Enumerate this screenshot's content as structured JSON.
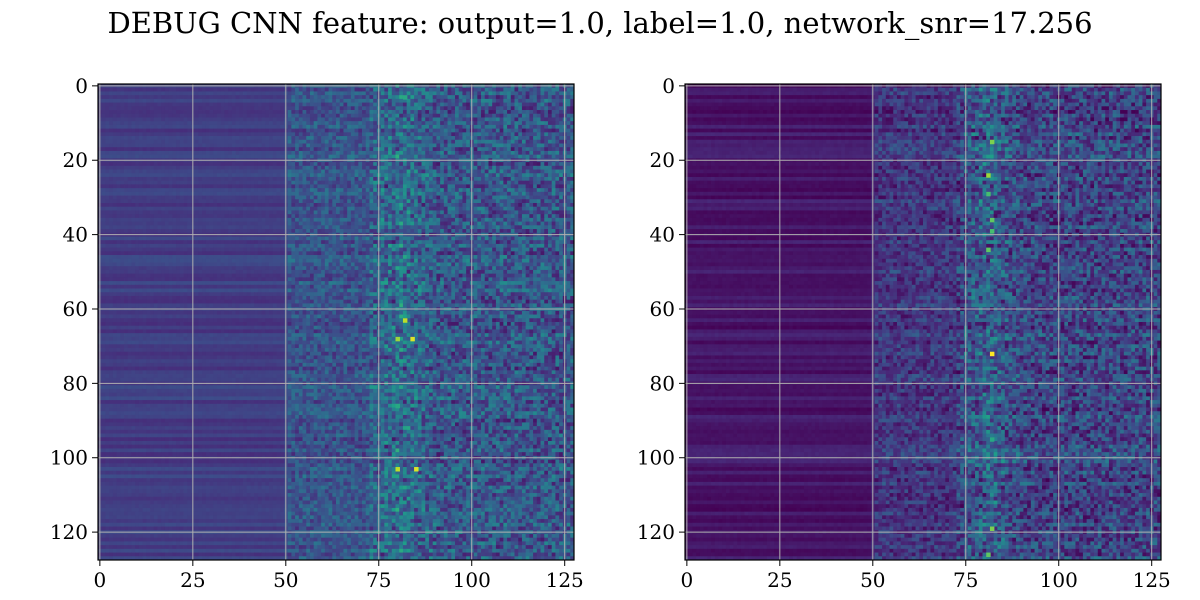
{
  "title": "DEBUG CNN feature: output=1.0, label=1.0, network_snr=17.256",
  "colormap": [
    "#440154",
    "#482878",
    "#3e4a89",
    "#31688e",
    "#26828e",
    "#1f9e89",
    "#35b779",
    "#6ece58",
    "#b5de2b",
    "#fde725"
  ],
  "grid_color": "#b0b0b0",
  "chart_data": [
    {
      "type": "heatmap",
      "rows": 128,
      "cols": 128,
      "xlim": [
        0,
        127
      ],
      "ylim": [
        127,
        0
      ],
      "xticks": [
        0,
        25,
        50,
        75,
        100,
        125
      ],
      "yticks": [
        0,
        20,
        40,
        60,
        80,
        100,
        120
      ],
      "xtick_labels": [
        "0",
        "25",
        "50",
        "75",
        "100",
        "125"
      ],
      "ytick_labels": [
        "0",
        "20",
        "40",
        "60",
        "80",
        "100",
        "120"
      ],
      "grid": true,
      "colormap": "viridis",
      "bands": [
        {
          "x_range": [
            0,
            50
          ],
          "level": 0.18
        },
        {
          "x_range": [
            50,
            75
          ],
          "level": 0.22
        },
        {
          "x_range": [
            75,
            127
          ],
          "level": 0.2
        }
      ],
      "hotspots": [
        {
          "x": 82,
          "y": 63,
          "value": 0.9
        },
        {
          "x": 80,
          "y": 68,
          "value": 0.85
        },
        {
          "x": 84,
          "y": 68,
          "value": 0.95
        },
        {
          "x": 80,
          "y": 103,
          "value": 0.9
        },
        {
          "x": 85,
          "y": 103,
          "value": 0.95
        },
        {
          "x": 80,
          "y": 86,
          "value": 0.6
        },
        {
          "x": 82,
          "y": 3,
          "value": 0.6
        }
      ]
    },
    {
      "type": "heatmap",
      "rows": 128,
      "cols": 128,
      "xlim": [
        0,
        127
      ],
      "ylim": [
        127,
        0
      ],
      "xticks": [
        0,
        25,
        50,
        75,
        100,
        125
      ],
      "yticks": [
        0,
        20,
        40,
        60,
        80,
        100,
        120
      ],
      "xtick_labels": [
        "0",
        "25",
        "50",
        "75",
        "100",
        "125"
      ],
      "ytick_labels": [
        "0",
        "20",
        "40",
        "60",
        "80",
        "100",
        "120"
      ],
      "grid": true,
      "colormap": "viridis",
      "bands": [
        {
          "x_range": [
            0,
            50
          ],
          "level": 0.06
        },
        {
          "x_range": [
            50,
            75
          ],
          "level": 0.12
        },
        {
          "x_range": [
            75,
            127
          ],
          "level": 0.14
        }
      ],
      "hotspots": [
        {
          "x": 82,
          "y": 15,
          "value": 0.8
        },
        {
          "x": 81,
          "y": 24,
          "value": 0.85
        },
        {
          "x": 81,
          "y": 29,
          "value": 0.7
        },
        {
          "x": 82,
          "y": 36,
          "value": 0.75
        },
        {
          "x": 82,
          "y": 39,
          "value": 0.7
        },
        {
          "x": 81,
          "y": 44,
          "value": 0.75
        },
        {
          "x": 82,
          "y": 72,
          "value": 1.0
        },
        {
          "x": 82,
          "y": 95,
          "value": 0.6
        },
        {
          "x": 82,
          "y": 119,
          "value": 0.8
        },
        {
          "x": 81,
          "y": 126,
          "value": 0.75
        }
      ]
    }
  ]
}
